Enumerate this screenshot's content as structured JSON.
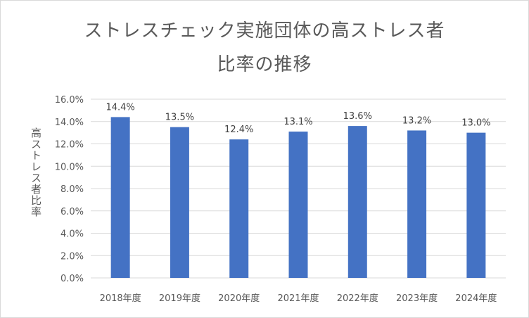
{
  "chart_data": {
    "type": "bar",
    "title_lines": [
      "ストレスチェック実施団体の高ストレス者",
      "比率の推移"
    ],
    "ylabel": "高ストレス者比率",
    "xlabel": "",
    "categories": [
      "2018年度",
      "2019年度",
      "2020年度",
      "2021年度",
      "2022年度",
      "2023年度",
      "2024年度"
    ],
    "values": [
      14.4,
      13.5,
      12.4,
      13.1,
      13.6,
      13.2,
      13.0
    ],
    "data_labels": [
      "14.4%",
      "13.5%",
      "12.4%",
      "13.1%",
      "13.6%",
      "13.2%",
      "13.0%"
    ],
    "ylim": [
      0,
      16
    ],
    "yticks": [
      0,
      2,
      4,
      6,
      8,
      10,
      12,
      14,
      16
    ],
    "ytick_labels": [
      "0.0%",
      "2.0%",
      "4.0%",
      "6.0%",
      "8.0%",
      "10.0%",
      "12.0%",
      "14.0%",
      "16.0%"
    ],
    "grid": true,
    "legend": "none",
    "colors": {
      "bar": "#4472c4",
      "grid": "#d9d9d9",
      "text": "#595959"
    }
  }
}
